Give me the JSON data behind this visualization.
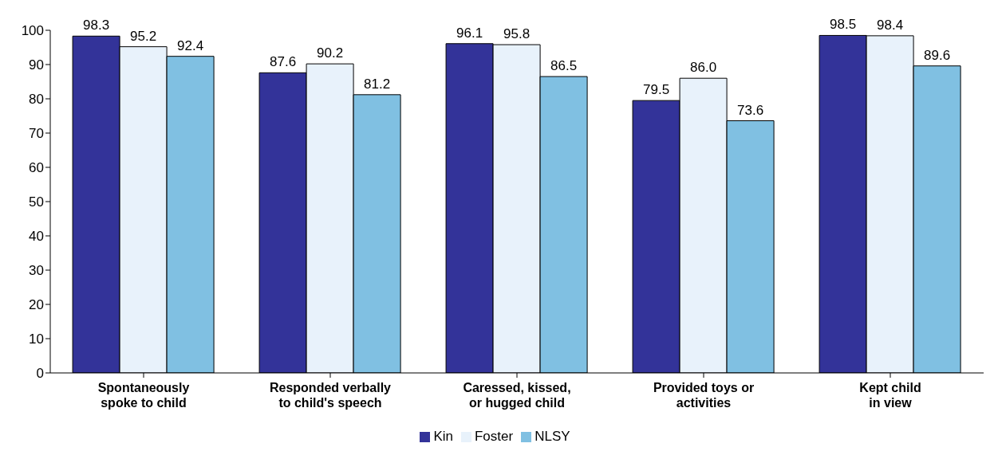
{
  "chart_data": {
    "type": "bar",
    "categories": [
      "Spontaneously\nspoke to child",
      "Responded verbally\nto child's speech",
      "Caressed, kissed,\nor hugged child",
      "Provided toys or\nactivities",
      "Kept child\nin view"
    ],
    "series": [
      {
        "name": "Kin",
        "color": "#333399",
        "values": [
          98.3,
          87.6,
          96.1,
          79.5,
          98.5
        ],
        "value_labels": [
          "98.3",
          "87.6",
          "96.1",
          "79.5",
          "98.5"
        ]
      },
      {
        "name": "Foster",
        "color": "#e8f2fb",
        "values": [
          95.2,
          90.2,
          95.8,
          86.0,
          98.4
        ],
        "value_labels": [
          "95.2",
          "90.2",
          "95.8",
          "86.0",
          "98.4"
        ]
      },
      {
        "name": "NLSY",
        "color": "#80c0e2",
        "values": [
          92.4,
          81.2,
          86.5,
          73.6,
          89.6
        ],
        "value_labels": [
          "92.4",
          "81.2",
          "86.5",
          "73.6",
          "89.6"
        ]
      }
    ],
    "ylim": [
      0,
      100
    ],
    "yticks": [
      0,
      10,
      20,
      30,
      40,
      50,
      60,
      70,
      80,
      90,
      100
    ],
    "grid": false,
    "legend": "bottom"
  }
}
